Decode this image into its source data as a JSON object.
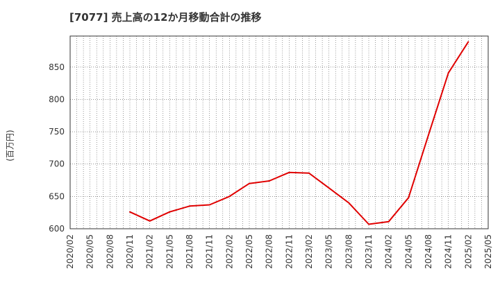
{
  "chart_data": {
    "type": "line",
    "title": "[7077]  売上高の12か月移動合計の推移",
    "ylabel": "(百万円)",
    "xlabel": "",
    "ylim": [
      600,
      898
    ],
    "yticks": [
      600,
      650,
      700,
      750,
      800,
      850
    ],
    "xticks": [
      "2020/02",
      "2020/05",
      "2020/08",
      "2020/11",
      "2021/02",
      "2021/05",
      "2021/08",
      "2021/11",
      "2022/02",
      "2022/05",
      "2022/08",
      "2022/11",
      "2023/02",
      "2023/05",
      "2023/08",
      "2023/11",
      "2024/02",
      "2024/05",
      "2024/08",
      "2024/11",
      "2025/02",
      "2025/05"
    ],
    "grid": true,
    "series": [
      {
        "name": "売上高の12か月移動合計",
        "color": "#e00000",
        "x": [
          "2020/11",
          "2021/02",
          "2021/05",
          "2021/08",
          "2021/11",
          "2022/02",
          "2022/05",
          "2022/08",
          "2022/11",
          "2023/02",
          "2023/05",
          "2023/08",
          "2023/11",
          "2024/02",
          "2024/05",
          "2024/08",
          "2024/11",
          "2025/02"
        ],
        "values": [
          626,
          612,
          626,
          635,
          637,
          650,
          670,
          674,
          687,
          686,
          663,
          640,
          607,
          611,
          648,
          745,
          841,
          889
        ]
      }
    ]
  }
}
